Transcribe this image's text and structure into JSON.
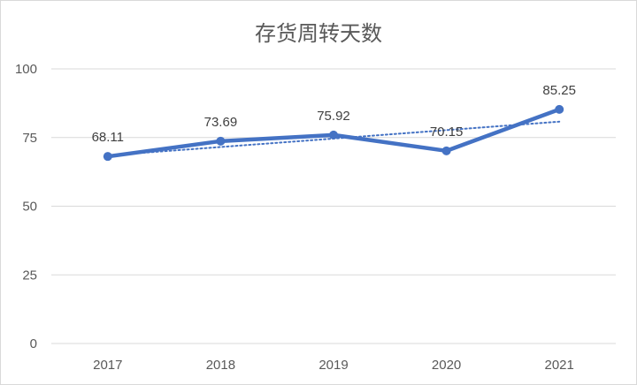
{
  "chart_data": {
    "type": "line",
    "title": "存货周转天数",
    "xlabel": "",
    "ylabel": "",
    "categories": [
      "2017",
      "2018",
      "2019",
      "2020",
      "2021"
    ],
    "series": [
      {
        "values": [
          68.11,
          73.69,
          75.92,
          70.15,
          85.25
        ],
        "color": "#4472C4"
      }
    ],
    "data_labels": [
      "68.11",
      "73.69",
      "75.92",
      "70.15",
      "85.25"
    ],
    "trendline": {
      "type": "linear",
      "style": "dotted",
      "color": "#4472C4"
    },
    "ylim": [
      0,
      100
    ],
    "yticks": [
      0,
      25,
      50,
      75,
      100
    ],
    "grid": true,
    "legend": "none"
  }
}
